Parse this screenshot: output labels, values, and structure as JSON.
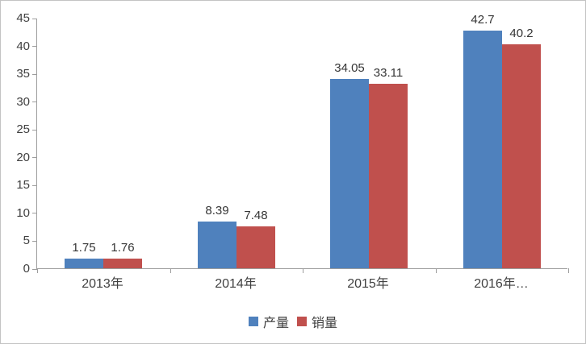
{
  "chart_data": {
    "type": "bar",
    "categories": [
      "2013年",
      "2014年",
      "2015年",
      "2016年…"
    ],
    "series": [
      {
        "name": "产量",
        "color": "#4F81BD",
        "values": [
          1.75,
          8.39,
          34.05,
          42.7
        ],
        "labels": [
          "1.75",
          "8.39",
          "34.05",
          "42.7"
        ]
      },
      {
        "name": "销量",
        "color": "#C0504D",
        "values": [
          1.76,
          7.48,
          33.11,
          40.2
        ],
        "labels": [
          "1.76",
          "7.48",
          "33.11",
          "40.2"
        ]
      }
    ],
    "title": "",
    "xlabel": "",
    "ylabel": "",
    "ylim": [
      0,
      45
    ],
    "yticks": [
      0,
      5,
      10,
      15,
      20,
      25,
      30,
      35,
      40,
      45
    ],
    "grid": false,
    "legend_position": "bottom"
  },
  "colors": {
    "series_blue": "#4F81BD",
    "series_red": "#C0504D",
    "axis_line": "#9d9d9d",
    "text": "#404040",
    "chart_border": "#c3c3c3",
    "background": "#ffffff"
  }
}
